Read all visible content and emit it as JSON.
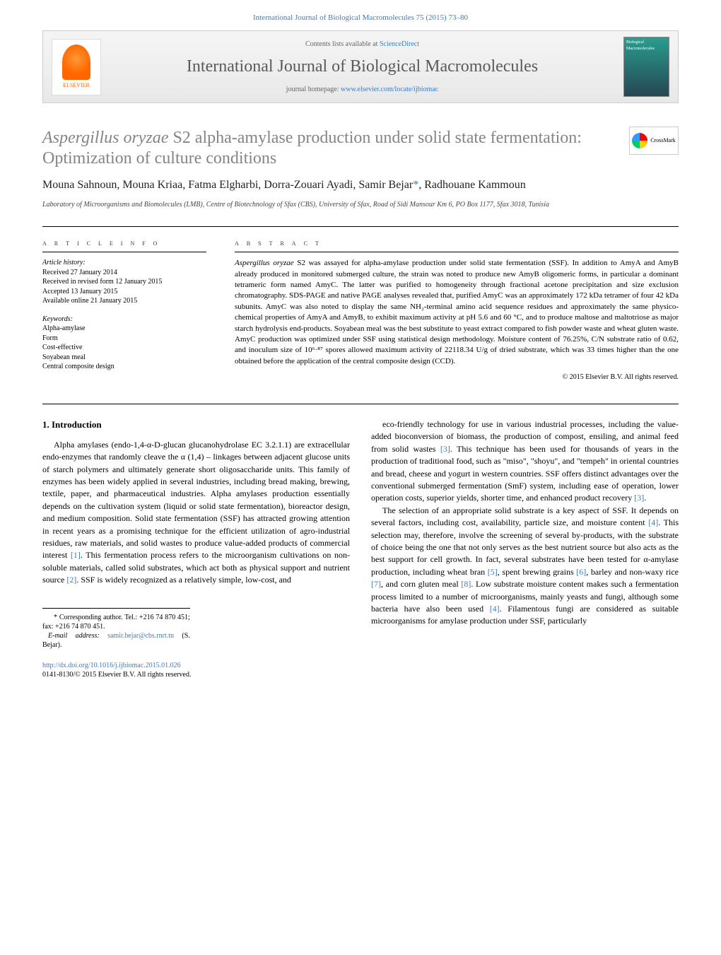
{
  "header": {
    "citation_line": "International Journal of Biological Macromolecules 75 (2015) 73–80",
    "contents_prefix": "Contents lists available at ",
    "contents_link_text": "ScienceDirect",
    "journal_name": "International Journal of Biological Macromolecules",
    "homepage_prefix": "journal homepage: ",
    "homepage_link_text": "www.elsevier.com/locate/ijbiomac",
    "publisher_label": "ELSEVIER",
    "cover_label": "Biological Macromolecules"
  },
  "article": {
    "title_italic_part": "Aspergillus oryzae",
    "title_rest": " S2 alpha-amylase production under solid state fermentation: Optimization of culture conditions",
    "crossmark_label": "CrossMark",
    "authors": "Mouna Sahnoun, Mouna Kriaa, Fatma Elgharbi, Dorra-Zouari Ayadi, Samir Bejar",
    "corr_mark": "*",
    "authors_last": ", Radhouane Kammoun",
    "affiliation": "Laboratory of Microorganisms and Biomolecules (LMB), Centre of Biotechnology of Sfax (CBS), University of Sfax, Road of Sidi Mansour Km 6, PO Box 1177, Sfax 3018, Tunisia"
  },
  "info": {
    "heading": "a r t i c l e   i n f o",
    "history_label": "Article history:",
    "received": "Received 27 January 2014",
    "revised": "Received in revised form 12 January 2015",
    "accepted": "Accepted 13 January 2015",
    "online": "Available online 21 January 2015",
    "keywords_label": "Keywords:",
    "kw1": "Alpha-amylase",
    "kw2": "Form",
    "kw3": "Cost-effective",
    "kw4": "Soyabean meal",
    "kw5": "Central composite design"
  },
  "abstract": {
    "heading": "a b s t r a c t",
    "text_pre_italic": "",
    "text_italic1": "Aspergillus oryzae",
    "text_body": " S2 was assayed for alpha-amylase production under solid state fermentation (SSF). In addition to AmyA and AmyB already produced in monitored submerged culture, the strain was noted to produce new AmyB oligomeric forms, in particular a dominant tetrameric form named AmyC. The latter was purified to homogeneity through fractional acetone precipitation and size exclusion chromatography. SDS-PAGE and native PAGE analyses revealed that, purified AmyC was an approximately 172 kDa tetramer of four 42 kDa subunits. AmyC was also noted to display the same NH₂-terminal amino acid sequence residues and approximately the same physico-chemical properties of AmyA and AmyB, to exhibit maximum activity at pH 5.6 and 60 °C, and to produce maltose and maltotriose as major starch hydrolysis end-products. Soyabean meal was the best substitute to yeast extract compared to fish powder waste and wheat gluten waste. AmyC production was optimized under SSF using statistical design methodology. Moisture content of 76.25%, C/N substrate ratio of 0.62, and inoculum size of 10⁶·⁸⁷ spores allowed maximum activity of 22118.34 U/g of dried substrate, which was 33 times higher than the one obtained before the application of the central composite design (CCD).",
    "copyright": "© 2015 Elsevier B.V. All rights reserved."
  },
  "body": {
    "section_number": "1.",
    "section_title": "Introduction",
    "col1_p1": "Alpha amylases (endo-1,4-α-D-glucan glucanohydrolase EC 3.2.1.1) are extracellular endo-enzymes that randomly cleave the α (1,4) – linkages between adjacent glucose units of starch polymers and ultimately generate short oligosaccharide units. This family of enzymes has been widely applied in several industries, including bread making, brewing, textile, paper, and pharmaceutical industries. Alpha amylases production essentially depends on the cultivation system (liquid or solid state fermentation), bioreactor design, and medium composition. Solid state fermentation (SSF) has attracted growing attention in recent years as a promising technique for the efficient utilization of agro-industrial residues, raw materials, and solid wastes to produce value-added products of commercial interest ",
    "col1_ref1": "[1]",
    "col1_p1b": ". This fermentation process refers to the microorganism cultivations on non-soluble materials, called solid substrates, which act both as physical support and nutrient source ",
    "col1_ref2": "[2]",
    "col1_p1c": ". SSF is widely recognized as a relatively simple, low-cost, and",
    "col2_p1a": "eco-friendly technology for use in various industrial processes, including the value-added bioconversion of biomass, the production of compost, ensiling, and animal feed from solid wastes ",
    "col2_ref3": "[3]",
    "col2_p1b": ". This technique has been used for thousands of years in the production of traditional food, such as \"miso\", \"shoyu\", and \"tempeh\" in oriental countries and bread, cheese and yogurt in western countries. SSF offers distinct advantages over the conventional submerged fermentation (SmF) system, including ease of operation, lower operation costs, superior yields, shorter time, and enhanced product recovery ",
    "col2_ref3b": "[3]",
    "col2_p1c": ".",
    "col2_p2a": "The selection of an appropriate solid substrate is a key aspect of SSF. It depends on several factors, including cost, availability, particle size, and moisture content ",
    "col2_ref4": "[4]",
    "col2_p2b": ". This selection may, therefore, involve the screening of several by-products, with the substrate of choice being the one that not only serves as the best nutrient source but also acts as the best support for cell growth. In fact, several substrates have been tested for α-amylase production, including wheat bran ",
    "col2_ref5": "[5]",
    "col2_p2c": ", spent brewing grains ",
    "col2_ref6": "[6]",
    "col2_p2d": ", barley and non-waxy rice ",
    "col2_ref7": "[7]",
    "col2_p2e": ", and corn gluten meal ",
    "col2_ref8": "[8]",
    "col2_p2f": ". Low substrate moisture content makes such a fermentation process limited to a number of microorganisms, mainly yeasts and fungi, although some bacteria have also been used ",
    "col2_ref4b": "[4]",
    "col2_p2g": ". Filamentous fungi are considered as suitable microorganisms for amylase production under SSF, particularly"
  },
  "footnotes": {
    "corr_label": "* Corresponding author. Tel.: +216 74 870 451; fax: +216 74 870 451.",
    "email_label": "E-mail address: ",
    "email": "samir.bejar@cbs.rnrt.tn",
    "email_suffix": " (S. Bejar)."
  },
  "footer": {
    "doi": "http://dx.doi.org/10.1016/j.ijbiomac.2015.01.026",
    "issn_copyright": "0141-8130/© 2015 Elsevier B.V. All rights reserved."
  },
  "colors": {
    "link": "#3a7dc4",
    "title_gray": "#848484",
    "elsevier_orange": "#ff6600"
  }
}
